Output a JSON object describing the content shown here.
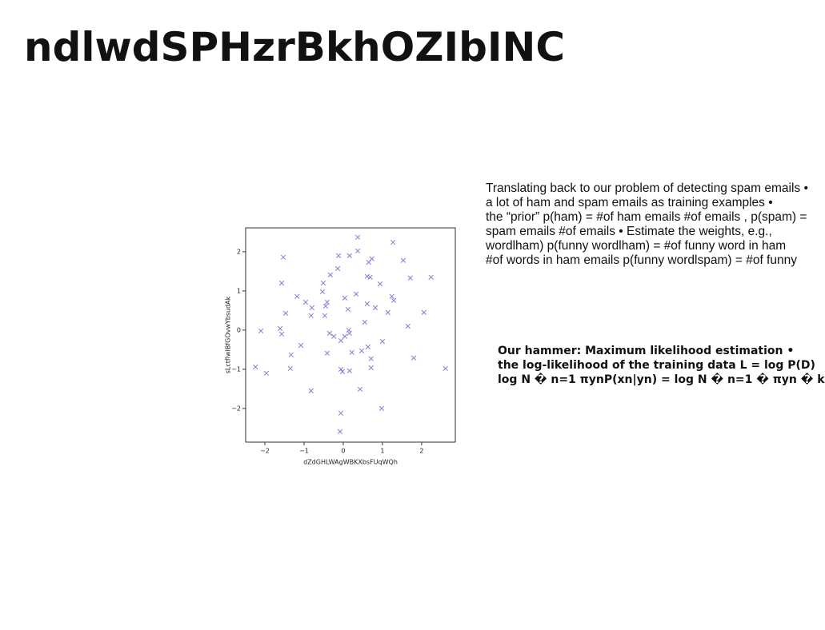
{
  "title": "ndlwdSPHzrBkhOZIbINC",
  "paragraph": {
    "lines": [
      "Translating back to our problem of detecting spam emails •",
      "a lot of ham and spam emails as training examples •",
      "the “prior” p(ham) = #of ham emails #of emails , p(spam) =",
      "spam emails #of emails • Estimate the weights, e.g.,",
      "wordlham) p(funny wordlham) = #of funny word in ham",
      "#of words in ham emails p(funny wordlspam) = #of funny"
    ]
  },
  "note": {
    "lines": [
      "Our hammer: Maximum likelihood estimation •",
      "the log-likelihood of the training data L = log P(D)",
      "log N � n=1 πynP(xn|yn) = log N � n=1 � πyn � k"
    ]
  },
  "chart_data": {
    "type": "scatter",
    "marker": "x",
    "color": "#6a5acd",
    "x_label": "dZdGHLWAgWBKXbsFUqWQh",
    "y_label": "sLctflwIBfGOvwYbsudAk",
    "xlim": [
      -2.49,
      2.86
    ],
    "ylim": [
      -2.86,
      2.61
    ],
    "xticks": [
      {
        "value": -2,
        "label": "−2"
      },
      {
        "value": -1,
        "label": "−1"
      },
      0,
      1,
      2
    ],
    "yticks": [
      {
        "value": -2,
        "label": "−2"
      },
      {
        "value": -1,
        "label": "−1"
      },
      0,
      1,
      2
    ],
    "x": [
      -2.1,
      -2.24,
      -1.96,
      -1.61,
      -1.57,
      -1.53,
      -1.57,
      -1.47,
      -1.18,
      -1.33,
      -1.35,
      -1.08,
      -0.96,
      -0.8,
      -0.82,
      -0.82,
      -0.53,
      -0.51,
      -0.47,
      -0.45,
      -0.41,
      -0.41,
      -0.35,
      -0.33,
      -0.24,
      -0.14,
      -0.12,
      -0.06,
      -0.06,
      -0.02,
      -0.06,
      -0.08,
      0.04,
      0.04,
      0.12,
      0.14,
      0.16,
      0.16,
      0.16,
      0.22,
      0.33,
      0.37,
      0.37,
      0.43,
      0.47,
      0.55,
      0.61,
      0.63,
      0.61,
      0.65,
      0.73,
      0.69,
      0.71,
      0.71,
      0.82,
      0.94,
      1.0,
      0.98,
      1.14,
      1.24,
      1.29,
      1.27,
      1.53,
      1.65,
      1.71,
      1.8,
      2.06,
      2.24,
      2.61
    ],
    "y": [
      -0.02,
      -0.94,
      -1.1,
      0.04,
      -0.1,
      1.86,
      1.2,
      0.43,
      0.86,
      -0.63,
      -0.98,
      -0.39,
      0.71,
      0.57,
      0.37,
      -1.55,
      0.98,
      1.2,
      0.37,
      0.61,
      0.71,
      -0.59,
      -0.08,
      1.41,
      -0.16,
      1.57,
      1.9,
      -0.27,
      -1.0,
      -1.06,
      -2.12,
      -2.59,
      0.82,
      -0.16,
      0.53,
      0.0,
      -0.08,
      1.9,
      -1.04,
      -0.57,
      0.92,
      2.37,
      2.02,
      -1.51,
      -0.53,
      0.2,
      0.67,
      -0.43,
      1.37,
      1.73,
      1.82,
      1.35,
      -0.73,
      -0.96,
      0.57,
      1.18,
      -0.29,
      -2.0,
      0.45,
      0.86,
      0.76,
      2.24,
      1.78,
      0.1,
      1.33,
      -0.71,
      0.45,
      1.35,
      -0.98
    ]
  }
}
